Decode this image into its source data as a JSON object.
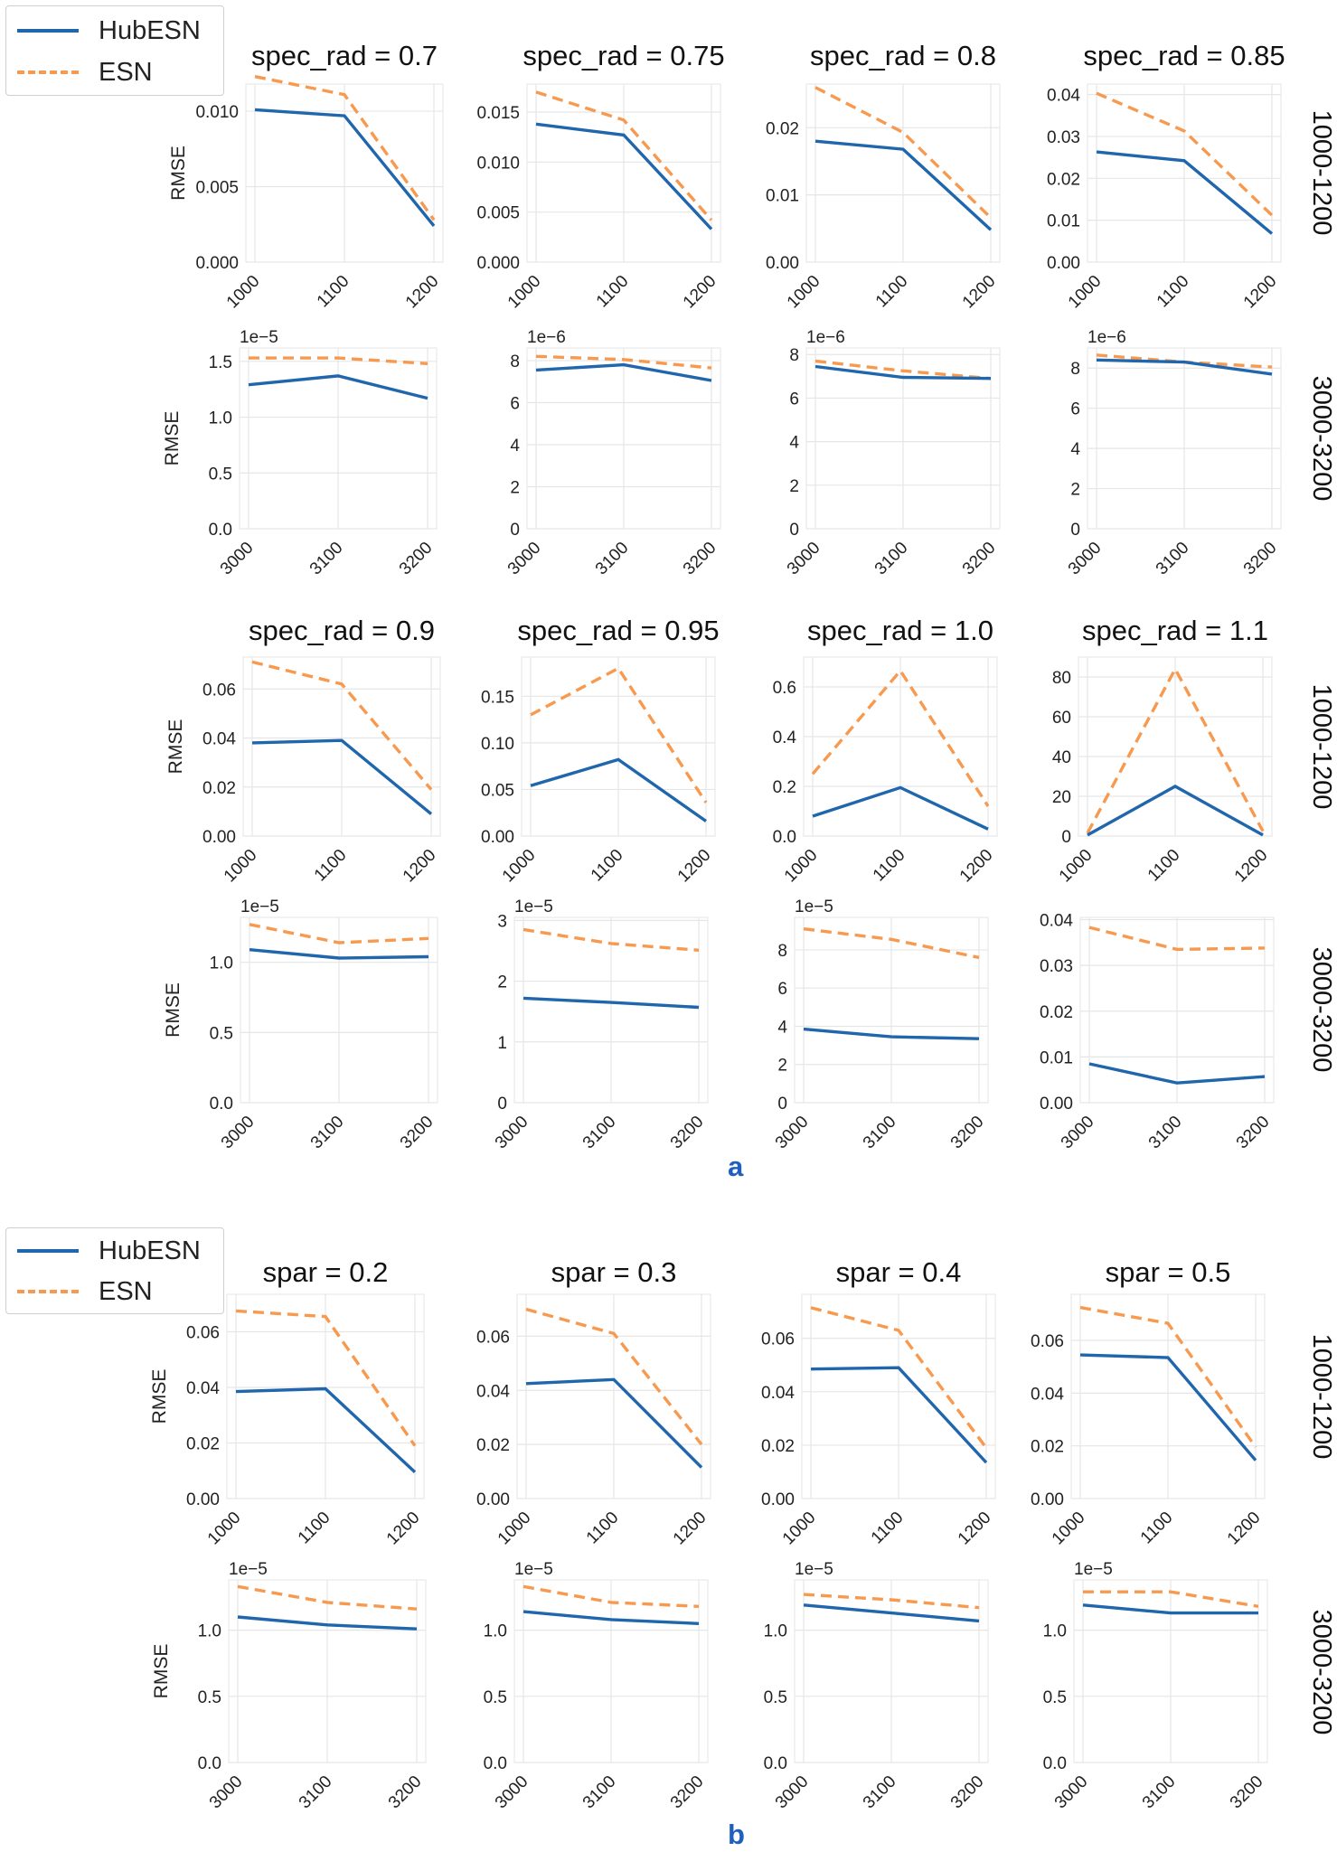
{
  "legend": {
    "hub": "HubESN",
    "esn": "ESN"
  },
  "colors": {
    "hub": "#1f66ad",
    "esn": "#f79a4f"
  },
  "panel_labels": {
    "a": "a",
    "b": "b"
  },
  "chart_data": [
    {
      "type": "line",
      "id": "a_r1",
      "titles": [
        "spec_rad = 0.7",
        "spec_rad = 0.75",
        "spec_rad = 0.8",
        "spec_rad = 0.85"
      ],
      "row_label": "1000-1200",
      "ylabel": "RMSE",
      "x": [
        "1000",
        "1100",
        "1200"
      ],
      "subplots": [
        {
          "ylim": [
            0,
            0.0118
          ],
          "yticks": [
            "0.000",
            "0.005",
            "0.010"
          ],
          "ytickv": [
            0,
            0.005,
            0.01
          ],
          "mult": "",
          "hub": [
            0.0101,
            0.0097,
            0.0024
          ],
          "esn": [
            0.0123,
            0.0111,
            0.0028
          ]
        },
        {
          "ylim": [
            0,
            0.0178
          ],
          "yticks": [
            "0.000",
            "0.005",
            "0.010",
            "0.015"
          ],
          "ytickv": [
            0,
            0.005,
            0.01,
            0.015
          ],
          "mult": "",
          "hub": [
            0.0138,
            0.0127,
            0.0033
          ],
          "esn": [
            0.017,
            0.0142,
            0.0042
          ]
        },
        {
          "ylim": [
            0,
            0.0265
          ],
          "yticks": [
            "0.00",
            "0.01",
            "0.02"
          ],
          "ytickv": [
            0,
            0.01,
            0.02
          ],
          "mult": "",
          "hub": [
            0.018,
            0.0168,
            0.0048
          ],
          "esn": [
            0.026,
            0.0193,
            0.0066
          ]
        },
        {
          "ylim": [
            0,
            0.0425
          ],
          "yticks": [
            "0.00",
            "0.01",
            "0.02",
            "0.03",
            "0.04"
          ],
          "ytickv": [
            0,
            0.01,
            0.02,
            0.03,
            0.04
          ],
          "mult": "",
          "hub": [
            0.0263,
            0.0242,
            0.0068
          ],
          "esn": [
            0.0403,
            0.0313,
            0.0112
          ]
        }
      ]
    },
    {
      "type": "line",
      "id": "a_r2",
      "titles": [
        "",
        "",
        "",
        ""
      ],
      "row_label": "3000-3200",
      "ylabel": "RMSE",
      "x": [
        "3000",
        "3100",
        "3200"
      ],
      "subplots": [
        {
          "ylim": [
            0,
            1.62
          ],
          "yticks": [
            "0.0",
            "0.5",
            "1.0",
            "1.5"
          ],
          "ytickv": [
            0,
            0.5,
            1.0,
            1.5
          ],
          "mult": "1e−5",
          "hub": [
            1.29,
            1.37,
            1.17
          ],
          "esn": [
            1.53,
            1.53,
            1.48
          ]
        },
        {
          "ylim": [
            0,
            8.6
          ],
          "yticks": [
            "0",
            "2",
            "4",
            "6",
            "8"
          ],
          "ytickv": [
            0,
            2,
            4,
            6,
            8
          ],
          "mult": "1e−6",
          "hub": [
            7.55,
            7.8,
            7.05
          ],
          "esn": [
            8.2,
            8.05,
            7.65
          ]
        },
        {
          "ylim": [
            0,
            8.3
          ],
          "yticks": [
            "0",
            "2",
            "4",
            "6",
            "8"
          ],
          "ytickv": [
            0,
            2,
            4,
            6,
            8
          ],
          "mult": "1e−6",
          "hub": [
            7.45,
            6.95,
            6.9
          ],
          "esn": [
            7.7,
            7.25,
            6.9
          ]
        },
        {
          "ylim": [
            0,
            9.0
          ],
          "yticks": [
            "0",
            "2",
            "4",
            "6",
            "8"
          ],
          "ytickv": [
            0,
            2,
            4,
            6,
            8
          ],
          "mult": "1e−6",
          "hub": [
            8.4,
            8.3,
            7.7
          ],
          "esn": [
            8.65,
            8.3,
            8.05
          ]
        }
      ]
    },
    {
      "type": "line",
      "id": "a_r3",
      "titles": [
        "spec_rad = 0.9",
        "spec_rad = 0.95",
        "spec_rad = 1.0",
        "spec_rad = 1.1"
      ],
      "row_label": "1000-1200",
      "ylabel": "RMSE",
      "x": [
        "1000",
        "1100",
        "1200"
      ],
      "subplots": [
        {
          "ylim": [
            0,
            0.073
          ],
          "yticks": [
            "0.00",
            "0.02",
            "0.04",
            "0.06"
          ],
          "ytickv": [
            0,
            0.02,
            0.04,
            0.06
          ],
          "mult": "",
          "hub": [
            0.038,
            0.039,
            0.009
          ],
          "esn": [
            0.071,
            0.062,
            0.019
          ]
        },
        {
          "ylim": [
            0,
            0.192
          ],
          "yticks": [
            "0.00",
            "0.05",
            "0.10",
            "0.15"
          ],
          "ytickv": [
            0,
            0.05,
            0.1,
            0.15
          ],
          "mult": "",
          "hub": [
            0.054,
            0.082,
            0.016
          ],
          "esn": [
            0.13,
            0.18,
            0.036
          ]
        },
        {
          "ylim": [
            0,
            0.72
          ],
          "yticks": [
            "0.0",
            "0.2",
            "0.4",
            "0.6"
          ],
          "ytickv": [
            0,
            0.2,
            0.4,
            0.6
          ],
          "mult": "",
          "hub": [
            0.08,
            0.195,
            0.028
          ],
          "esn": [
            0.25,
            0.665,
            0.12
          ]
        },
        {
          "ylim": [
            0,
            90
          ],
          "yticks": [
            "0",
            "20",
            "40",
            "60",
            "80"
          ],
          "ytickv": [
            0,
            20,
            40,
            60,
            80
          ],
          "mult": "",
          "hub": [
            0.5,
            25,
            0.5
          ],
          "esn": [
            1.5,
            84,
            2.5
          ]
        }
      ]
    },
    {
      "type": "line",
      "id": "a_r4",
      "titles": [
        "",
        "",
        "",
        ""
      ],
      "row_label": "3000-3200",
      "ylabel": "RMSE",
      "x": [
        "3000",
        "3100",
        "3200"
      ],
      "subplots": [
        {
          "ylim": [
            0,
            1.32
          ],
          "yticks": [
            "0.0",
            "0.5",
            "1.0"
          ],
          "ytickv": [
            0,
            0.5,
            1.0
          ],
          "mult": "1e−5",
          "hub": [
            1.09,
            1.03,
            1.04
          ],
          "esn": [
            1.27,
            1.14,
            1.17
          ]
        },
        {
          "ylim": [
            0,
            3.05
          ],
          "yticks": [
            "0",
            "1",
            "2",
            "3"
          ],
          "ytickv": [
            0,
            1,
            2,
            3
          ],
          "mult": "1e−5",
          "hub": [
            1.72,
            1.65,
            1.57
          ],
          "esn": [
            2.85,
            2.62,
            2.51
          ]
        },
        {
          "ylim": [
            0,
            9.7
          ],
          "yticks": [
            "0",
            "2",
            "4",
            "6",
            "8"
          ],
          "ytickv": [
            0,
            2,
            4,
            6,
            8
          ],
          "mult": "1e−5",
          "hub": [
            3.85,
            3.45,
            3.35
          ],
          "esn": [
            9.1,
            8.55,
            7.6
          ]
        },
        {
          "ylim": [
            0,
            0.0405
          ],
          "yticks": [
            "0.00",
            "0.01",
            "0.02",
            "0.03",
            "0.04"
          ],
          "ytickv": [
            0,
            0.01,
            0.02,
            0.03,
            0.04
          ],
          "mult": "",
          "hub": [
            0.0085,
            0.0043,
            0.0057
          ],
          "esn": [
            0.0383,
            0.0335,
            0.0338
          ]
        }
      ]
    },
    {
      "type": "line",
      "id": "b_r1",
      "titles": [
        "spar = 0.2",
        "spar = 0.3",
        "spar = 0.4",
        "spar = 0.5"
      ],
      "row_label": "1000-1200",
      "ylabel": "RMSE",
      "x": [
        "1000",
        "1100",
        "1200"
      ],
      "subplots": [
        {
          "ylim": [
            0,
            0.0735
          ],
          "yticks": [
            "0.00",
            "0.02",
            "0.04",
            "0.06"
          ],
          "ytickv": [
            0,
            0.02,
            0.04,
            0.06
          ],
          "mult": "",
          "hub": [
            0.0385,
            0.0395,
            0.0095
          ],
          "esn": [
            0.0675,
            0.0655,
            0.019
          ]
        },
        {
          "ylim": [
            0,
            0.0755
          ],
          "yticks": [
            "0.00",
            "0.02",
            "0.04",
            "0.06"
          ],
          "ytickv": [
            0,
            0.02,
            0.04,
            0.06
          ],
          "mult": "",
          "hub": [
            0.0425,
            0.044,
            0.0115
          ],
          "esn": [
            0.07,
            0.061,
            0.02
          ]
        },
        {
          "ylim": [
            0,
            0.0765
          ],
          "yticks": [
            "0.00",
            "0.02",
            "0.04",
            "0.06"
          ],
          "ytickv": [
            0,
            0.02,
            0.04,
            0.06
          ],
          "mult": "",
          "hub": [
            0.0485,
            0.049,
            0.0135
          ],
          "esn": [
            0.0715,
            0.063,
            0.019
          ]
        },
        {
          "ylim": [
            0,
            0.0775
          ],
          "yticks": [
            "0.00",
            "0.02",
            "0.04",
            "0.06"
          ],
          "ytickv": [
            0,
            0.02,
            0.04,
            0.06
          ],
          "mult": "",
          "hub": [
            0.0545,
            0.0535,
            0.0145
          ],
          "esn": [
            0.0725,
            0.0665,
            0.0195
          ]
        }
      ]
    },
    {
      "type": "line",
      "id": "b_r2",
      "titles": [
        "",
        "",
        "",
        ""
      ],
      "row_label": "3000-3200",
      "ylabel": "RMSE",
      "x": [
        "3000",
        "3100",
        "3200"
      ],
      "subplots": [
        {
          "ylim": [
            0,
            1.38
          ],
          "yticks": [
            "0.0",
            "0.5",
            "1.0"
          ],
          "ytickv": [
            0,
            0.5,
            1.0
          ],
          "mult": "1e−5",
          "hub": [
            1.1,
            1.04,
            1.01
          ],
          "esn": [
            1.33,
            1.21,
            1.16
          ]
        },
        {
          "ylim": [
            0,
            1.38
          ],
          "yticks": [
            "0.0",
            "0.5",
            "1.0"
          ],
          "ytickv": [
            0,
            0.5,
            1.0
          ],
          "mult": "1e−5",
          "hub": [
            1.14,
            1.08,
            1.05
          ],
          "esn": [
            1.33,
            1.21,
            1.18
          ]
        },
        {
          "ylim": [
            0,
            1.38
          ],
          "yticks": [
            "0.0",
            "0.5",
            "1.0"
          ],
          "ytickv": [
            0,
            0.5,
            1.0
          ],
          "mult": "1e−5",
          "hub": [
            1.19,
            1.13,
            1.07
          ],
          "esn": [
            1.27,
            1.23,
            1.17
          ]
        },
        {
          "ylim": [
            0,
            1.38
          ],
          "yticks": [
            "0.0",
            "0.5",
            "1.0"
          ],
          "ytickv": [
            0,
            0.5,
            1.0
          ],
          "mult": "1e−5",
          "hub": [
            1.19,
            1.13,
            1.13
          ],
          "esn": [
            1.29,
            1.29,
            1.18
          ]
        }
      ]
    }
  ]
}
